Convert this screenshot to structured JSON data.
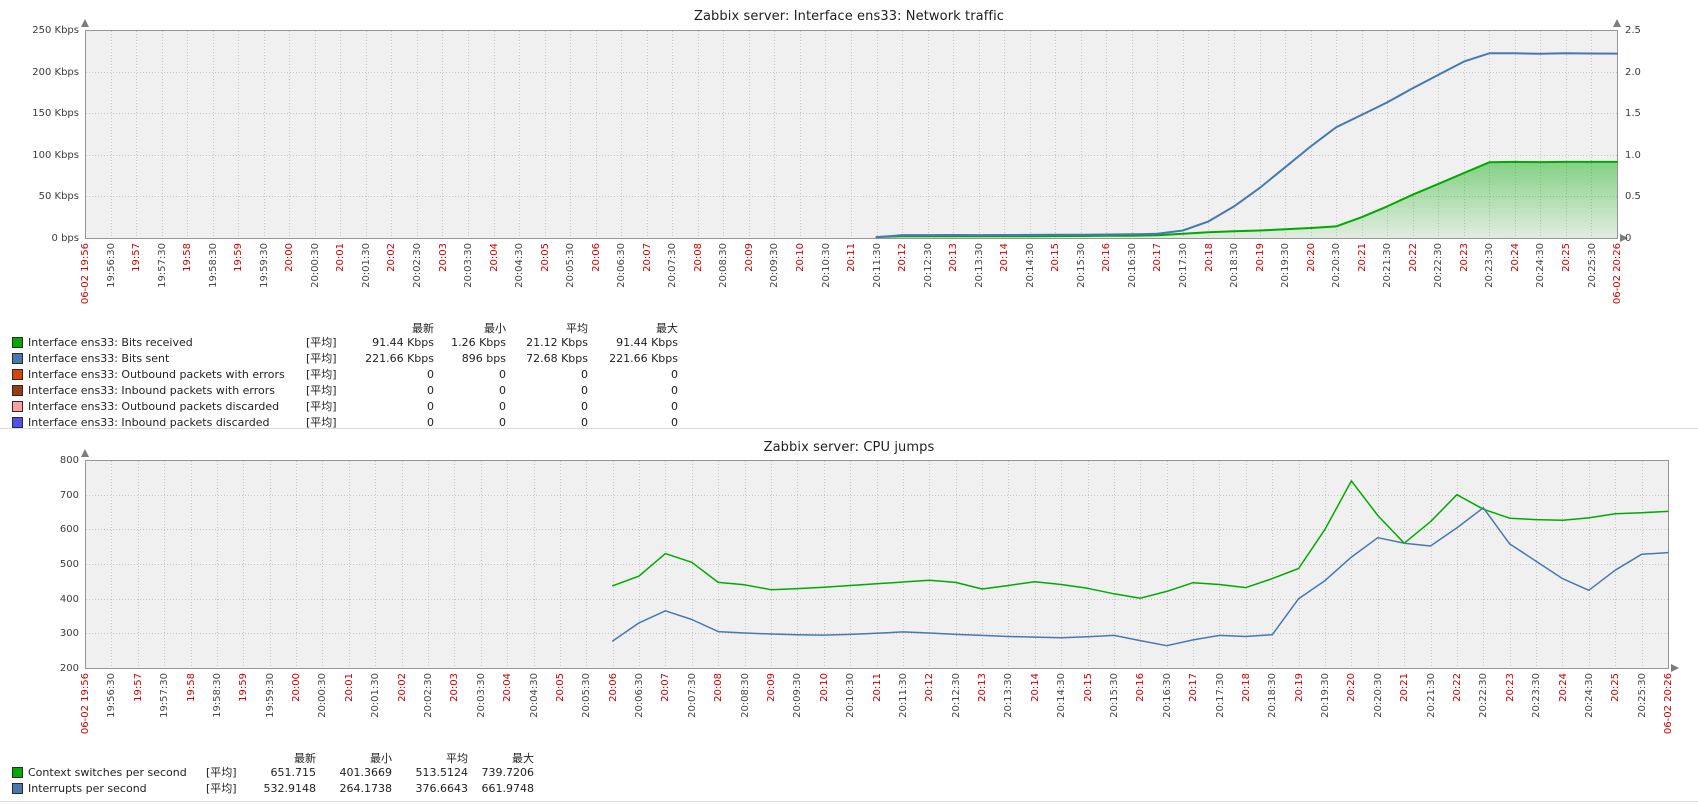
{
  "colors": {
    "plot_bg": "#f0f0f0",
    "plot_border": "#969696",
    "grid": "#c6c6c6",
    "arrow": "#7d7d7d",
    "axis_label": "#3d3d3d",
    "axis_label_red": "#cc0000",
    "green": "#00AA00",
    "blue": "#4679B1"
  },
  "x_axis_labels": [
    "06-02 19:56",
    "19:56:30",
    "19:57",
    "19:57:30",
    "19:58",
    "19:58:30",
    "19:59",
    "19:59:30",
    "20:00",
    "20:00:30",
    "20:01",
    "20:01:30",
    "20:02",
    "20:02:30",
    "20:03",
    "20:03:30",
    "20:04",
    "20:04:30",
    "20:05",
    "20:05:30",
    "20:06",
    "20:06:30",
    "20:07",
    "20:07:30",
    "20:08",
    "20:08:30",
    "20:09",
    "20:09:30",
    "20:10",
    "20:10:30",
    "20:11",
    "20:11:30",
    "20:12",
    "20:12:30",
    "20:13",
    "20:13:30",
    "20:14",
    "20:14:30",
    "20:15",
    "20:15:30",
    "20:16",
    "20:16:30",
    "20:17",
    "20:17:30",
    "20:18",
    "20:18:30",
    "20:19",
    "20:19:30",
    "20:20",
    "20:20:30",
    "20:21",
    "20:21:30",
    "20:22",
    "20:22:30",
    "20:23",
    "20:23:30",
    "20:24",
    "20:24:30",
    "20:25",
    "20:25:30",
    "06-02 20:26"
  ],
  "chart_data": [
    {
      "type": "area",
      "title": "Zabbix server: Interface ens33: Network traffic",
      "x_range": "06-02 19:56 to 06-02 20:26",
      "x_labels_key": "x_axis_labels",
      "grid": true,
      "legend_position": "bottom",
      "y_left": {
        "min": 0,
        "max": 250,
        "unit": "Kbps",
        "ticks": [
          "0 bps",
          "50 Kbps",
          "100 Kbps",
          "150 Kbps",
          "200 Kbps",
          "250 Kbps"
        ]
      },
      "y_right": {
        "min": 0,
        "max": 2.5,
        "ticks": [
          "0",
          "0.5",
          "1.0",
          "1.5",
          "2.0",
          "2.5"
        ]
      },
      "series": [
        {
          "name": "Interface ens33: Bits received",
          "color": "#00AA00",
          "fill": true,
          "width": 2,
          "axis": "left",
          "points": [
            [
              "20:11:30",
              1.26
            ],
            [
              "20:12",
              2
            ],
            [
              "20:12:30",
              2
            ],
            [
              "20:13",
              2
            ],
            [
              "20:13:30",
              2
            ],
            [
              "20:14",
              2.1
            ],
            [
              "20:14:30",
              2.2
            ],
            [
              "20:15",
              2.3
            ],
            [
              "20:15:30",
              2.4
            ],
            [
              "20:16",
              2.6
            ],
            [
              "20:16:30",
              2.8
            ],
            [
              "20:17",
              3.4
            ],
            [
              "20:17:30",
              5
            ],
            [
              "20:18",
              7
            ],
            [
              "20:18:30",
              8
            ],
            [
              "20:19",
              9
            ],
            [
              "20:19:30",
              10.5
            ],
            [
              "20:20",
              12
            ],
            [
              "20:20:30",
              14
            ],
            [
              "20:21",
              25
            ],
            [
              "20:21:30",
              38
            ],
            [
              "20:22",
              52
            ],
            [
              "20:22:30",
              65
            ],
            [
              "20:23",
              78
            ],
            [
              "20:23:30",
              91
            ],
            [
              "20:24",
              91.44
            ],
            [
              "20:24:30",
              91.2
            ],
            [
              "20:25",
              91.44
            ],
            [
              "20:25:30",
              91.44
            ],
            [
              "06-02 20:26",
              91.44
            ]
          ]
        },
        {
          "name": "Interface ens33: Bits sent",
          "color": "#4679B1",
          "fill": false,
          "width": 2,
          "axis": "left",
          "points": [
            [
              "20:11:30",
              0.9
            ],
            [
              "20:12",
              3.5
            ],
            [
              "20:12:30",
              3.5
            ],
            [
              "20:13",
              3.6
            ],
            [
              "20:13:30",
              3.5
            ],
            [
              "20:14",
              3.6
            ],
            [
              "20:14:30",
              3.7
            ],
            [
              "20:15",
              3.8
            ],
            [
              "20:15:30",
              4
            ],
            [
              "20:16",
              4.2
            ],
            [
              "20:16:30",
              4.5
            ],
            [
              "20:17",
              5
            ],
            [
              "20:17:30",
              9
            ],
            [
              "20:18",
              20
            ],
            [
              "20:18:30",
              38
            ],
            [
              "20:19",
              60
            ],
            [
              "20:19:30",
              85
            ],
            [
              "20:20",
              110
            ],
            [
              "20:20:30",
              133
            ],
            [
              "20:21",
              148
            ],
            [
              "20:21:30",
              163
            ],
            [
              "20:22",
              180
            ],
            [
              "20:22:30",
              196
            ],
            [
              "20:23",
              212
            ],
            [
              "20:23:30",
              222
            ],
            [
              "20:24",
              222
            ],
            [
              "20:24:30",
              221.5
            ],
            [
              "20:25",
              222
            ],
            [
              "20:25:30",
              221.7
            ],
            [
              "06-02 20:26",
              221.66
            ]
          ]
        }
      ],
      "legend": {
        "headers": [
          "最新",
          "最小",
          "平均",
          "最大"
        ],
        "rows": [
          {
            "color": "#00AA00",
            "label": "Interface ens33: Bits received",
            "func": "[平均]",
            "values": [
              "91.44 Kbps",
              "1.26 Kbps",
              "21.12 Kbps",
              "91.44 Kbps"
            ]
          },
          {
            "color": "#4679B1",
            "label": "Interface ens33: Bits sent",
            "func": "[平均]",
            "values": [
              "221.66 Kbps",
              "896 bps",
              "72.68 Kbps",
              "221.66 Kbps"
            ]
          },
          {
            "color": "#DD4400",
            "label": "Interface ens33: Outbound packets with errors",
            "func": "[平均]",
            "values": [
              "0",
              "0",
              "0",
              "0"
            ]
          },
          {
            "color": "#983B0E",
            "label": "Interface ens33: Inbound packets with errors",
            "func": "[平均]",
            "values": [
              "0",
              "0",
              "0",
              "0"
            ]
          },
          {
            "color": "#FFA0A0",
            "label": "Interface ens33: Outbound packets discarded",
            "func": "[平均]",
            "values": [
              "0",
              "0",
              "0",
              "0"
            ]
          },
          {
            "color": "#5050EE",
            "label": "Interface ens33: Inbound packets discarded",
            "func": "[平均]",
            "values": [
              "0",
              "0",
              "0",
              "0"
            ]
          }
        ]
      }
    },
    {
      "type": "line",
      "title": "Zabbix server: CPU jumps",
      "x_range": "06-02 19:56 to 06-02 20:26",
      "x_labels_key": "x_axis_labels",
      "grid": true,
      "legend_position": "bottom",
      "y_left": {
        "min": 200,
        "max": 800,
        "ticks": [
          "200",
          "300",
          "400",
          "500",
          "600",
          "700",
          "800"
        ]
      },
      "series": [
        {
          "name": "Context switches per second",
          "color": "#00AA00",
          "fill": false,
          "width": 1.5,
          "axis": "left",
          "points": [
            [
              "20:06",
              437
            ],
            [
              "20:06:30",
              465
            ],
            [
              "20:07",
              530
            ],
            [
              "20:07:30",
              505
            ],
            [
              "20:08",
              447
            ],
            [
              "20:08:30",
              440
            ],
            [
              "20:09",
              426
            ],
            [
              "20:09:30",
              429
            ],
            [
              "20:10",
              433
            ],
            [
              "20:10:30",
              438
            ],
            [
              "20:11",
              443
            ],
            [
              "20:11:30",
              448
            ],
            [
              "20:12",
              453
            ],
            [
              "20:12:30",
              447
            ],
            [
              "20:13",
              428
            ],
            [
              "20:13:30",
              438
            ],
            [
              "20:14",
              449
            ],
            [
              "20:14:30",
              441
            ],
            [
              "20:15",
              430
            ],
            [
              "20:15:30",
              414
            ],
            [
              "20:16",
              401.4
            ],
            [
              "20:16:30",
              421
            ],
            [
              "20:17",
              446
            ],
            [
              "20:17:30",
              441
            ],
            [
              "20:18",
              432
            ],
            [
              "20:18:30",
              458
            ],
            [
              "20:19",
              487
            ],
            [
              "20:19:30",
              600
            ],
            [
              "20:20",
              739.7
            ],
            [
              "20:20:30",
              640
            ],
            [
              "20:21",
              560
            ],
            [
              "20:21:30",
              622
            ],
            [
              "20:22",
              700
            ],
            [
              "20:22:30",
              658
            ],
            [
              "20:23",
              632
            ],
            [
              "20:23:30",
              628
            ],
            [
              "20:24",
              626
            ],
            [
              "20:24:30",
              633
            ],
            [
              "20:25",
              645
            ],
            [
              "20:25:30",
              648
            ],
            [
              "06-02 20:26",
              651.7
            ]
          ]
        },
        {
          "name": "Interrupts per second",
          "color": "#4679B1",
          "fill": false,
          "width": 1.5,
          "axis": "left",
          "points": [
            [
              "20:06",
              278
            ],
            [
              "20:06:30",
              330
            ],
            [
              "20:07",
              365
            ],
            [
              "20:07:30",
              340
            ],
            [
              "20:08",
              305
            ],
            [
              "20:08:30",
              301
            ],
            [
              "20:09",
              298
            ],
            [
              "20:09:30",
              296
            ],
            [
              "20:10",
              295
            ],
            [
              "20:10:30",
              297
            ],
            [
              "20:11",
              300
            ],
            [
              "20:11:30",
              304
            ],
            [
              "20:12",
              301
            ],
            [
              "20:12:30",
              297
            ],
            [
              "20:13",
              294
            ],
            [
              "20:13:30",
              291
            ],
            [
              "20:14",
              289
            ],
            [
              "20:14:30",
              287
            ],
            [
              "20:15",
              290
            ],
            [
              "20:15:30",
              294
            ],
            [
              "20:16",
              279
            ],
            [
              "20:16:30",
              264.2
            ],
            [
              "20:17",
              281
            ],
            [
              "20:17:30",
              294
            ],
            [
              "20:18",
              291
            ],
            [
              "20:18:30",
              296
            ],
            [
              "20:19",
              400
            ],
            [
              "20:19:30",
              452
            ],
            [
              "20:20",
              520
            ],
            [
              "20:20:30",
              576
            ],
            [
              "20:21",
              560
            ],
            [
              "20:21:30",
              552
            ],
            [
              "20:22",
              604
            ],
            [
              "20:22:30",
              662
            ],
            [
              "20:23",
              558
            ],
            [
              "20:23:30",
              508
            ],
            [
              "20:24",
              458
            ],
            [
              "20:24:30",
              424
            ],
            [
              "20:25",
              482
            ],
            [
              "20:25:30",
              528
            ],
            [
              "06-02 20:26",
              532.9
            ]
          ]
        }
      ],
      "legend": {
        "headers": [
          "最新",
          "最小",
          "平均",
          "最大"
        ],
        "rows": [
          {
            "color": "#00AA00",
            "label": "Context switches per second",
            "func": "[平均]",
            "values": [
              "651.715",
              "401.3669",
              "513.5124",
              "739.7206"
            ]
          },
          {
            "color": "#4679B1",
            "label": "Interrupts per second",
            "func": "[平均]",
            "values": [
              "532.9148",
              "264.1738",
              "376.6643",
              "661.9748"
            ]
          }
        ]
      }
    }
  ]
}
